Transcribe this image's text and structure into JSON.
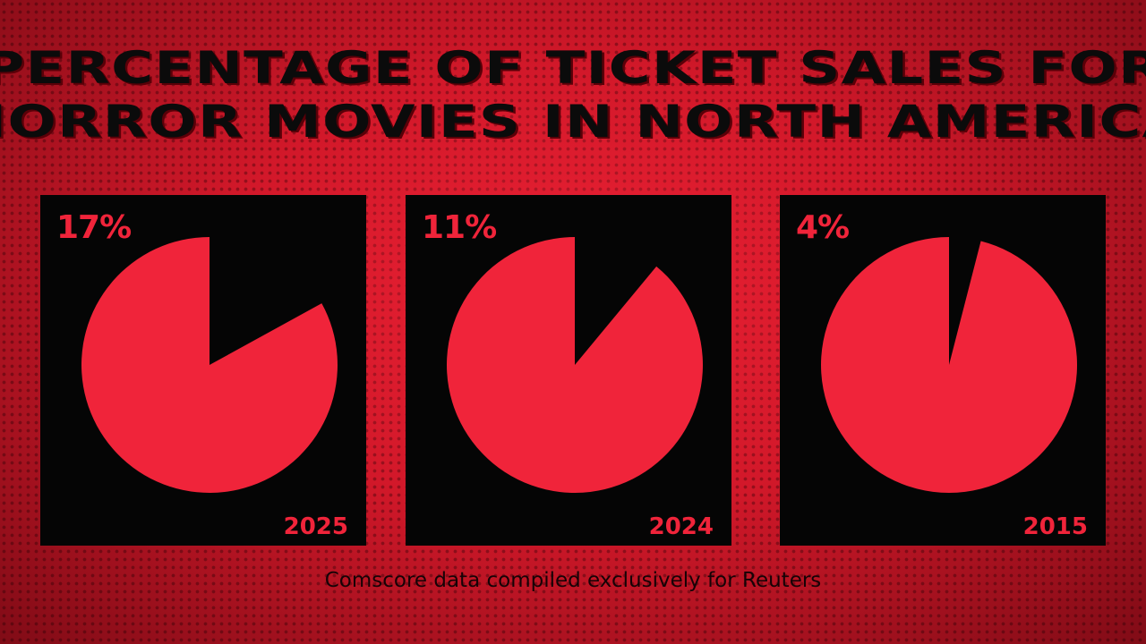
{
  "title_lines": [
    "PERCENTAGE OF TICKET SALES FOR",
    "HORROR MOVIES IN NORTH AMERICA"
  ],
  "footer": "Comscore data compiled exclusively for Reuters",
  "colors": {
    "background": "#d4192b",
    "panel": "#050505",
    "accent": "#f0243a",
    "title": "#0b0b0b"
  },
  "chart_data": [
    {
      "type": "pie",
      "category": "2025",
      "value": 17,
      "label": "17%"
    },
    {
      "type": "pie",
      "category": "2024",
      "value": 11,
      "label": "11%"
    },
    {
      "type": "pie",
      "category": "2015",
      "value": 4,
      "label": "4%"
    }
  ]
}
